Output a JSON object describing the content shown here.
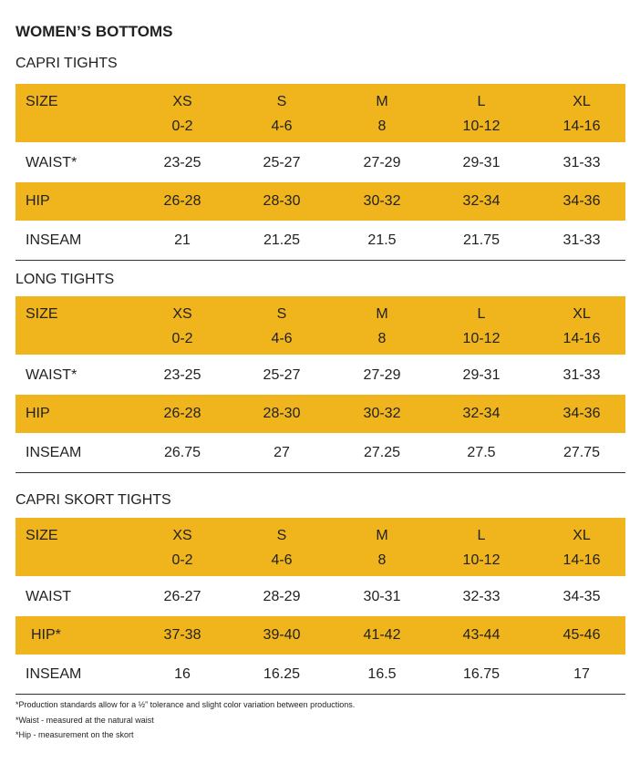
{
  "title": "WOMEN’S BOTTOMS",
  "sections": [
    {
      "name": "CAPRI TIGHTS",
      "header": {
        "label": "SIZE",
        "sizes": [
          {
            "name": "XS",
            "range": "0-2"
          },
          {
            "name": "S",
            "range": "4-6"
          },
          {
            "name": "M",
            "range": "8"
          },
          {
            "name": "L",
            "range": "10-12"
          },
          {
            "name": "XL",
            "range": "14-16"
          }
        ]
      },
      "rows": [
        {
          "label": "WAIST*",
          "values": [
            "23-25",
            "25-27",
            "27-29",
            "29-31",
            "31-33"
          ]
        },
        {
          "label": "HIP",
          "values": [
            "26-28",
            "28-30",
            "30-32",
            "32-34",
            "34-36"
          ]
        },
        {
          "label": "INSEAM",
          "values": [
            "21",
            "21.25",
            "21.5",
            "21.75",
            "31-33"
          ]
        }
      ]
    },
    {
      "name": "LONG TIGHTS",
      "header": {
        "label": "SIZE",
        "sizes": [
          {
            "name": "XS",
            "range": "0-2"
          },
          {
            "name": "S",
            "range": "4-6"
          },
          {
            "name": "M",
            "range": "8"
          },
          {
            "name": "L",
            "range": "10-12"
          },
          {
            "name": "XL",
            "range": "14-16"
          }
        ]
      },
      "rows": [
        {
          "label": "WAIST*",
          "values": [
            "23-25",
            "25-27",
            "27-29",
            "29-31",
            "31-33"
          ]
        },
        {
          "label": "HIP",
          "values": [
            "26-28",
            "28-30",
            "30-32",
            "32-34",
            "34-36"
          ]
        },
        {
          "label": "INSEAM",
          "values": [
            "26.75",
            "27",
            "27.25",
            "27.5",
            "27.75"
          ]
        }
      ]
    },
    {
      "name": "CAPRI SKORT TIGHTS",
      "header": {
        "label": "SIZE",
        "sizes": [
          {
            "name": "XS",
            "range": "0-2"
          },
          {
            "name": "S",
            "range": "4-6"
          },
          {
            "name": "M",
            "range": "8"
          },
          {
            "name": "L",
            "range": "10-12"
          },
          {
            "name": "XL",
            "range": "14-16"
          }
        ]
      },
      "rows": [
        {
          "label": "WAIST",
          "values": [
            "26-27",
            "28-29",
            "30-31",
            "32-33",
            "34-35"
          ]
        },
        {
          "label": "HIP*",
          "values": [
            "37-38",
            "39-40",
            "41-42",
            "43-44",
            "45-46"
          ]
        },
        {
          "label": "INSEAM",
          "values": [
            "16",
            "16.25",
            "16.5",
            "16.75",
            "17"
          ]
        }
      ]
    }
  ],
  "footnotes": [
    "*Production standards allow for a ½” tolerance and slight color variation between productions.",
    "*Waist - measured at the natural waist",
    "*Hip - measurement on the skort"
  ]
}
